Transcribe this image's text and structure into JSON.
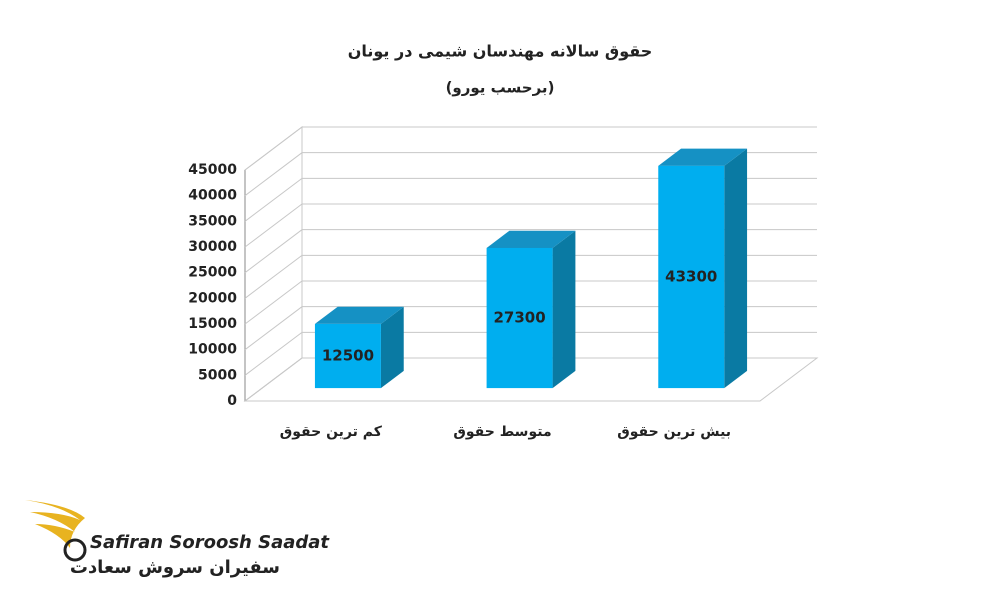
{
  "chart_data": {
    "type": "bar3d",
    "title": "حقوق سالانه مهندسان شیمی در یونان",
    "subtitle": "(برحسب یورو)",
    "categories": [
      "کم ترین حقوق",
      "متوسط حقوق",
      "بیش ترین حقوق"
    ],
    "values": [
      12500,
      27300,
      43300
    ],
    "color": "#00aeef",
    "ylim": [
      0,
      45000
    ],
    "yticks": [
      0,
      5000,
      10000,
      15000,
      20000,
      25000,
      30000,
      35000,
      40000,
      45000
    ],
    "grid": true
  },
  "logo": {
    "name_latin": "Safiran Soroosh Saadat",
    "name_persian": "سفیران سروش سعادت"
  }
}
